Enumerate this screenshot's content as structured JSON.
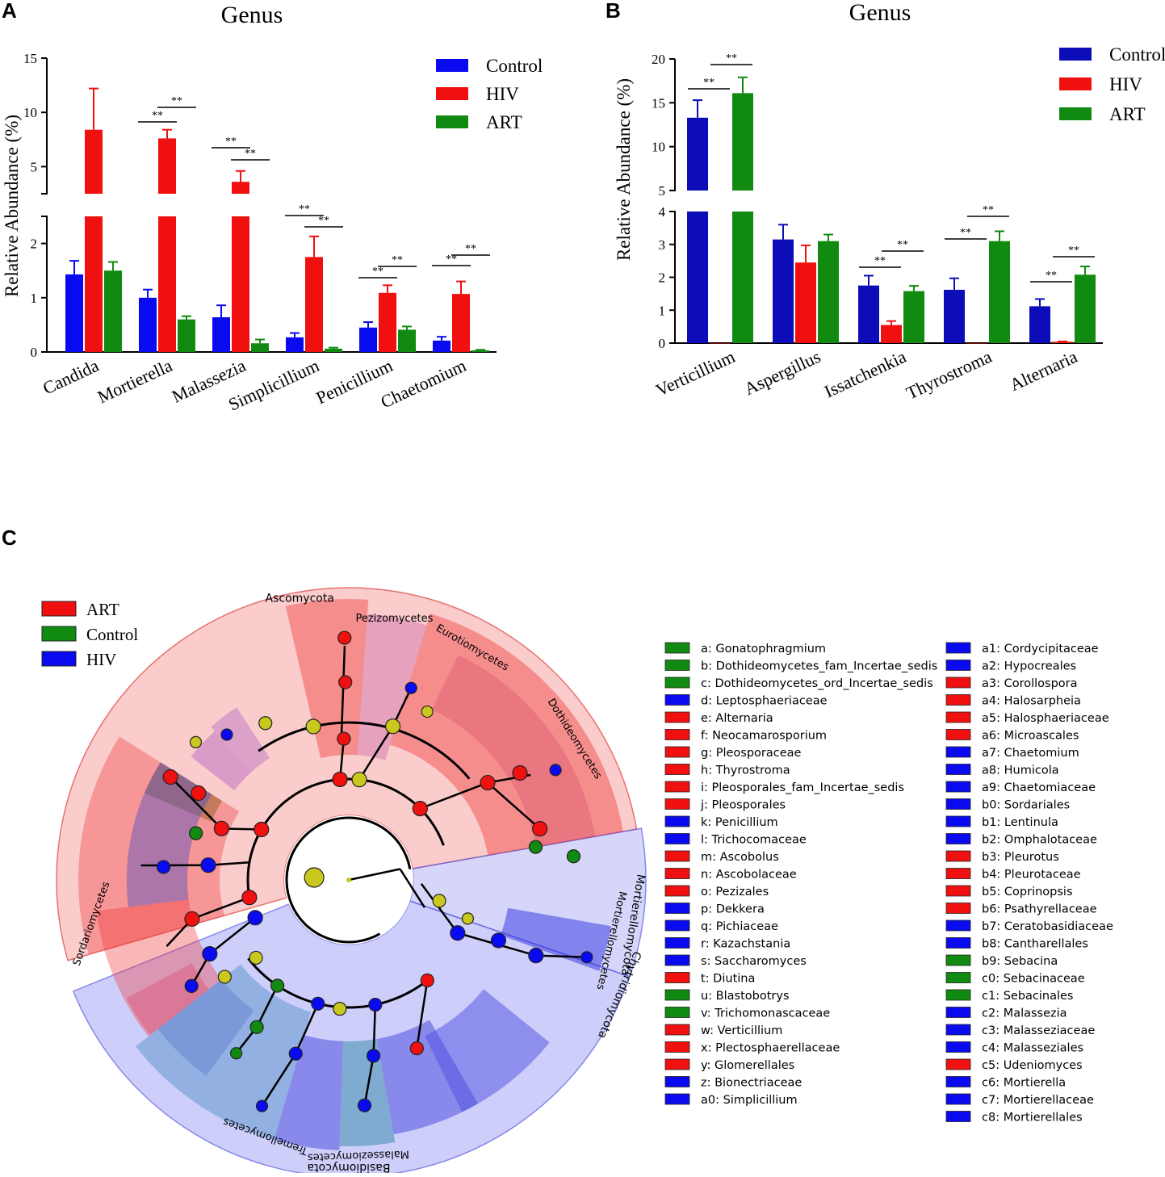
{
  "chart_data": [
    {
      "panel": "A",
      "type": "bar",
      "title": "Genus",
      "ylabel": "Relative Abundance (%)",
      "xlabel": "",
      "broken_axis": {
        "lower_range": [
          0,
          2.5
        ],
        "upper_range": [
          2.5,
          15
        ]
      },
      "lower_ticks": [
        "0",
        "1",
        "2"
      ],
      "upper_ticks": [
        "5",
        "10",
        "15"
      ],
      "categories": [
        "Candida",
        "Mortierella",
        "Malassezia",
        "Simplicillium",
        "Penicillium",
        "Chaetomium"
      ],
      "series": [
        {
          "name": "Control",
          "color": "#0a0af0",
          "values": [
            1.43,
            1.0,
            0.64,
            0.27,
            0.45,
            0.21
          ],
          "errors": [
            0.25,
            0.15,
            0.22,
            0.08,
            0.1,
            0.07
          ]
        },
        {
          "name": "HIV",
          "color": "#f01010",
          "values": [
            8.4,
            7.6,
            3.6,
            1.75,
            1.09,
            1.07
          ],
          "errors": [
            3.8,
            0.8,
            1.0,
            0.38,
            0.14,
            0.23
          ]
        },
        {
          "name": "ART",
          "color": "#108a10",
          "values": [
            1.5,
            0.6,
            0.16,
            0.06,
            0.41,
            0.03
          ],
          "errors": [
            0.16,
            0.06,
            0.07,
            0.02,
            0.06,
            0.01
          ]
        }
      ],
      "significance_label": "**"
    },
    {
      "panel": "B",
      "type": "bar",
      "title": "Genus",
      "ylabel": "Relative Abundance (%)",
      "xlabel": "",
      "broken_axis": {
        "lower_range": [
          0,
          4
        ],
        "upper_range": [
          5,
          20
        ]
      },
      "lower_ticks": [
        "0",
        "1",
        "2",
        "3",
        "4"
      ],
      "upper_ticks": [
        "5",
        "10",
        "15",
        "20"
      ],
      "categories": [
        "Verticillium",
        "Aspergillus",
        "Issatchenkia",
        "Thyrostroma",
        "Alternaria"
      ],
      "series": [
        {
          "name": "Control",
          "color": "#0c0cb8",
          "values": [
            13.3,
            3.15,
            1.75,
            1.62,
            1.12
          ],
          "errors": [
            2.0,
            0.45,
            0.3,
            0.35,
            0.22
          ]
        },
        {
          "name": "HIV",
          "color": "#f01010",
          "values": [
            0,
            2.45,
            0.55,
            0,
            0.04
          ],
          "errors": [
            0,
            0.52,
            0.12,
            0,
            0.01
          ]
        },
        {
          "name": "ART",
          "color": "#108a10",
          "values": [
            16.1,
            3.1,
            1.58,
            3.1,
            2.08
          ],
          "errors": [
            1.8,
            0.2,
            0.16,
            0.3,
            0.25
          ]
        }
      ],
      "significance_label": "**"
    },
    {
      "panel": "C",
      "type": "cladogram",
      "legend_groups": [
        {
          "name": "ART",
          "color": "#f01010"
        },
        {
          "name": "Control",
          "color": "#108a10"
        },
        {
          "name": "HIV",
          "color": "#0a0af0"
        }
      ],
      "phylum_labels": [
        "Ascomycota",
        "Basidiomycota",
        "Mortierellomycota",
        "Chytridiomycota"
      ],
      "class_labels": [
        "Pezizomycetes",
        "Eurotiomycetes",
        "Dothideomycetes",
        "Sordariomycetes",
        "Tremellomycetes",
        "Malasseziomycetes",
        "Mortierellomycetes"
      ],
      "taxa": [
        {
          "label": "a: Gonatophragmium",
          "group": "Control"
        },
        {
          "label": "b: Dothideomycetes_fam_Incertae_sedis",
          "group": "Control"
        },
        {
          "label": "c: Dothideomycetes_ord_Incertae_sedis",
          "group": "Control"
        },
        {
          "label": "d: Leptosphaeriaceae",
          "group": "HIV"
        },
        {
          "label": "e: Alternaria",
          "group": "ART"
        },
        {
          "label": "f: Neocamarosporium",
          "group": "ART"
        },
        {
          "label": "g: Pleosporaceae",
          "group": "ART"
        },
        {
          "label": "h: Thyrostroma",
          "group": "ART"
        },
        {
          "label": "i: Pleosporales_fam_Incertae_sedis",
          "group": "ART"
        },
        {
          "label": "j: Pleosporales",
          "group": "ART"
        },
        {
          "label": "k: Penicillium",
          "group": "HIV"
        },
        {
          "label": "l: Trichocomaceae",
          "group": "HIV"
        },
        {
          "label": "m: Ascobolus",
          "group": "ART"
        },
        {
          "label": "n: Ascobolaceae",
          "group": "ART"
        },
        {
          "label": "o: Pezizales",
          "group": "ART"
        },
        {
          "label": "p: Dekkera",
          "group": "HIV"
        },
        {
          "label": "q: Pichiaceae",
          "group": "HIV"
        },
        {
          "label": "r: Kazachstania",
          "group": "HIV"
        },
        {
          "label": "s: Saccharomyces",
          "group": "HIV"
        },
        {
          "label": "t: Diutina",
          "group": "ART"
        },
        {
          "label": "u: Blastobotrys",
          "group": "Control"
        },
        {
          "label": "v: Trichomonascaceae",
          "group": "Control"
        },
        {
          "label": "w: Verticillium",
          "group": "ART"
        },
        {
          "label": "x: Plectosphaerellaceae",
          "group": "ART"
        },
        {
          "label": "y: Glomerellales",
          "group": "ART"
        },
        {
          "label": "z: Bionectriaceae",
          "group": "HIV"
        },
        {
          "label": "a0: Simplicillium",
          "group": "HIV"
        },
        {
          "label": "a1: Cordycipitaceae",
          "group": "HIV"
        },
        {
          "label": "a2: Hypocreales",
          "group": "HIV"
        },
        {
          "label": "a3: Corollospora",
          "group": "ART"
        },
        {
          "label": "a4: Halosarpheia",
          "group": "ART"
        },
        {
          "label": "a5: Halosphaeriaceae",
          "group": "ART"
        },
        {
          "label": "a6: Microascales",
          "group": "ART"
        },
        {
          "label": "a7: Chaetomium",
          "group": "HIV"
        },
        {
          "label": "a8: Humicola",
          "group": "HIV"
        },
        {
          "label": "a9: Chaetomiaceae",
          "group": "HIV"
        },
        {
          "label": "b0: Sordariales",
          "group": "HIV"
        },
        {
          "label": "b1: Lentinula",
          "group": "HIV"
        },
        {
          "label": "b2: Omphalotaceae",
          "group": "HIV"
        },
        {
          "label": "b3: Pleurotus",
          "group": "ART"
        },
        {
          "label": "b4: Pleurotaceae",
          "group": "ART"
        },
        {
          "label": "b5: Coprinopsis",
          "group": "ART"
        },
        {
          "label": "b6: Psathyrellaceae",
          "group": "ART"
        },
        {
          "label": "b7: Ceratobasidiaceae",
          "group": "HIV"
        },
        {
          "label": "b8: Cantharellales",
          "group": "HIV"
        },
        {
          "label": "b9: Sebacina",
          "group": "Control"
        },
        {
          "label": "c0: Sebacinaceae",
          "group": "Control"
        },
        {
          "label": "c1: Sebacinales",
          "group": "Control"
        },
        {
          "label": "c2: Malassezia",
          "group": "HIV"
        },
        {
          "label": "c3: Malasseziaceae",
          "group": "HIV"
        },
        {
          "label": "c4: Malasseziales",
          "group": "HIV"
        },
        {
          "label": "c5: Udeniomyces",
          "group": "ART"
        },
        {
          "label": "c6: Mortierella",
          "group": "HIV"
        },
        {
          "label": "c7: Mortierellaceae",
          "group": "HIV"
        },
        {
          "label": "c8: Mortierellales",
          "group": "HIV"
        }
      ]
    }
  ]
}
